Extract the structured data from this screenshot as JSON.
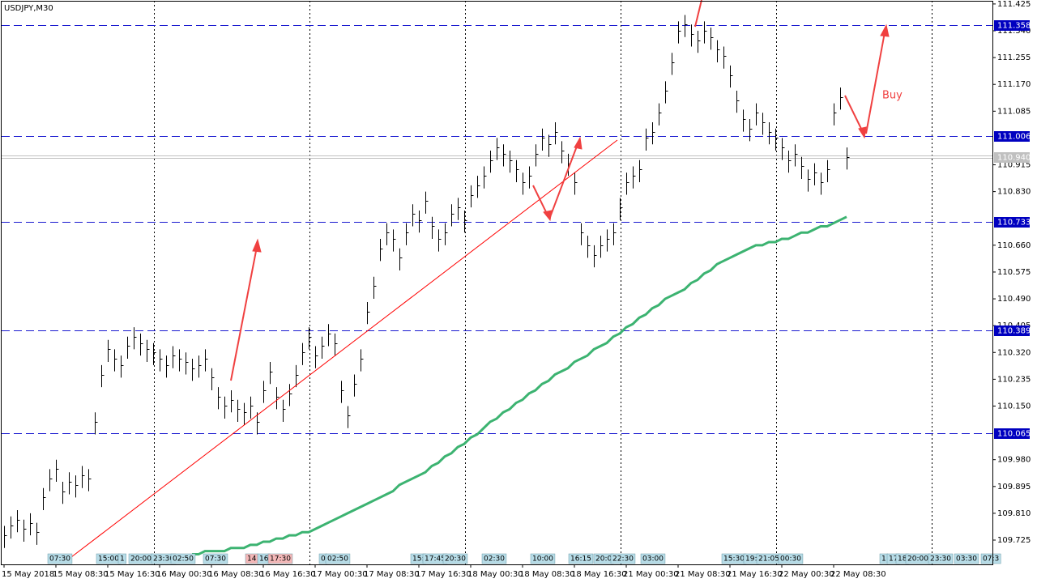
{
  "chart_data": {
    "type": "ohlc",
    "title": "USDJPY,M30",
    "annotation": "Buy",
    "color": "#000000",
    "ylim": [
      109.648,
      111.435
    ],
    "yticks": [
      111.425,
      {
        "value": 111.34,
        "label": "111.340"
      },
      111.255,
      {
        "value": 111.17,
        "label": "111.170"
      },
      111.085,
      110.915,
      {
        "value": 110.83,
        "label": "110.830"
      },
      {
        "value": 110.66,
        "label": "110.660"
      },
      110.575,
      {
        "value": 110.49,
        "label": "110.490"
      },
      110.405,
      {
        "value": 110.32,
        "label": "110.320"
      },
      110.235,
      {
        "value": 110.15,
        "label": "110.150"
      },
      {
        "value": 109.98,
        "label": "109.980"
      },
      109.895,
      {
        "value": 109.81,
        "label": "109.810"
      },
      109.725
    ],
    "levels": [
      111.358,
      111.006,
      110.733,
      110.389,
      110.065
    ],
    "current_price": {
      "value": 110.94,
      "label": "110.940"
    },
    "events": [
      "07:30",
      "15:00",
      "1",
      "20:00",
      "23:30",
      "02:50",
      "07:30",
      "14",
      "16",
      "17:30",
      "0",
      "02:50",
      "15:",
      "17:45",
      "20:30",
      "02:30",
      "10:00",
      "16:15",
      "20:0",
      "22:30",
      "03:00",
      "15:30",
      "19:",
      "21:05",
      "00:30",
      "1",
      "17",
      "18",
      "20:00",
      "23:30",
      "03:30",
      "07:3"
    ],
    "categories": [
      "15 May 2018",
      null,
      null,
      null,
      null,
      null,
      null,
      null,
      "15 May 08:30",
      null,
      null,
      null,
      null,
      null,
      null,
      null,
      "15 May 16:30",
      null,
      null,
      null,
      null,
      null,
      null,
      null,
      "16 May 00:30",
      null,
      null,
      null,
      null,
      null,
      null,
      null,
      "16 May 08:30",
      null,
      null,
      null,
      null,
      null,
      null,
      null,
      "16 May 16:30",
      null,
      null,
      null,
      null,
      null,
      null,
      null,
      "17 May 00:30",
      null,
      null,
      null,
      null,
      null,
      null,
      null,
      "17 May 08:30",
      null,
      null,
      null,
      null,
      null,
      null,
      null,
      "17 May 16:30",
      null,
      null,
      null,
      null,
      null,
      null,
      null,
      "18 May 00:30",
      null,
      null,
      null,
      null,
      null,
      null,
      null,
      "18 May 08:30",
      null,
      null,
      null,
      null,
      null,
      null,
      null,
      "18 May 16:30",
      null,
      null,
      null,
      null,
      null,
      null,
      null,
      "21 May 00:30",
      null,
      null,
      null,
      null,
      null,
      null,
      null,
      "21 May 08:30",
      null,
      null,
      null,
      null,
      null,
      null,
      null,
      "21 May 16:30",
      null,
      null,
      null,
      null,
      null,
      null,
      null,
      "22 May 00:30",
      null,
      null,
      null,
      null,
      null,
      null,
      null,
      "22 May 08:30",
      null,
      null
    ],
    "high": [
      109.77,
      109.8,
      109.82,
      109.79,
      109.81,
      109.78,
      109.89,
      109.95,
      109.98,
      109.91,
      109.94,
      109.93,
      109.96,
      109.95,
      110.13,
      110.28,
      110.36,
      110.33,
      110.31,
      110.37,
      110.4,
      110.38,
      110.36,
      110.35,
      110.33,
      110.31,
      110.34,
      110.33,
      110.32,
      110.3,
      110.31,
      110.33,
      110.27,
      110.21,
      110.18,
      110.2,
      110.17,
      110.16,
      110.18,
      110.13,
      110.23,
      110.29,
      110.21,
      110.17,
      110.22,
      110.28,
      110.35,
      110.4,
      110.34,
      110.37,
      110.41,
      110.38,
      110.23,
      110.15,
      110.25,
      110.33,
      110.48,
      110.56,
      110.68,
      110.73,
      110.71,
      110.65,
      110.73,
      110.79,
      110.77,
      110.83,
      110.75,
      110.71,
      110.73,
      110.79,
      110.81,
      110.77,
      110.85,
      110.88,
      110.91,
      110.96,
      111,
      110.98,
      110.96,
      110.93,
      110.89,
      110.91,
      110.98,
      111.03,
      111.01,
      111.05,
      110.99,
      110.95,
      110.89,
      110.73,
      110.69,
      110.66,
      110.69,
      110.71,
      110.73,
      110.81,
      110.89,
      110.91,
      110.93,
      111.03,
      111.05,
      111.11,
      111.18,
      111.27,
      111.37,
      111.39,
      111.36,
      111.34,
      111.37,
      111.35,
      111.31,
      111.29,
      111.23,
      111.15,
      111.09,
      111.06,
      111.11,
      111.08,
      111.05,
      111.03,
      111,
      110.96,
      110.98,
      110.94,
      110.9,
      110.92,
      110.89,
      110.93,
      111.11,
      111.16,
      110.97
    ],
    "low": [
      109.7,
      109.73,
      109.75,
      109.72,
      109.74,
      109.71,
      109.82,
      109.88,
      109.91,
      109.84,
      109.87,
      109.86,
      109.89,
      109.88,
      110.06,
      110.21,
      110.29,
      110.26,
      110.24,
      110.3,
      110.33,
      110.31,
      110.29,
      110.28,
      110.26,
      110.24,
      110.27,
      110.26,
      110.25,
      110.23,
      110.24,
      110.26,
      110.2,
      110.14,
      110.11,
      110.13,
      110.1,
      110.09,
      110.11,
      110.06,
      110.16,
      110.22,
      110.14,
      110.1,
      110.15,
      110.21,
      110.28,
      110.33,
      110.27,
      110.3,
      110.34,
      110.31,
      110.16,
      110.08,
      110.18,
      110.26,
      110.41,
      110.49,
      110.61,
      110.66,
      110.64,
      110.58,
      110.66,
      110.72,
      110.7,
      110.76,
      110.68,
      110.64,
      110.66,
      110.72,
      110.74,
      110.7,
      110.78,
      110.81,
      110.84,
      110.89,
      110.93,
      110.91,
      110.89,
      110.86,
      110.82,
      110.84,
      110.91,
      110.96,
      110.94,
      110.98,
      110.92,
      110.88,
      110.82,
      110.66,
      110.62,
      110.59,
      110.62,
      110.64,
      110.66,
      110.74,
      110.82,
      110.84,
      110.86,
      110.96,
      110.98,
      111.04,
      111.11,
      111.2,
      111.3,
      111.32,
      111.29,
      111.27,
      111.3,
      111.28,
      111.24,
      111.22,
      111.16,
      111.08,
      111.02,
      110.99,
      111.04,
      111.01,
      110.98,
      110.96,
      110.93,
      110.89,
      110.91,
      110.87,
      110.83,
      110.85,
      110.82,
      110.86,
      111.04,
      111.09,
      110.9
    ],
    "close": [
      109.74,
      109.77,
      109.79,
      109.76,
      109.78,
      109.75,
      109.86,
      109.92,
      109.95,
      109.88,
      109.91,
      109.9,
      109.93,
      109.92,
      110.1,
      110.25,
      110.33,
      110.3,
      110.28,
      110.34,
      110.37,
      110.35,
      110.33,
      110.32,
      110.3,
      110.28,
      110.31,
      110.3,
      110.29,
      110.27,
      110.28,
      110.3,
      110.24,
      110.18,
      110.15,
      110.17,
      110.14,
      110.13,
      110.15,
      110.1,
      110.2,
      110.26,
      110.18,
      110.14,
      110.19,
      110.25,
      110.32,
      110.37,
      110.31,
      110.34,
      110.38,
      110.35,
      110.2,
      110.12,
      110.22,
      110.3,
      110.45,
      110.53,
      110.65,
      110.7,
      110.68,
      110.62,
      110.7,
      110.76,
      110.74,
      110.8,
      110.72,
      110.68,
      110.7,
      110.76,
      110.78,
      110.74,
      110.82,
      110.85,
      110.88,
      110.93,
      110.97,
      110.95,
      110.93,
      110.9,
      110.86,
      110.88,
      110.95,
      111,
      110.98,
      111.02,
      110.96,
      110.92,
      110.86,
      110.7,
      110.66,
      110.63,
      110.66,
      110.68,
      110.7,
      110.78,
      110.86,
      110.88,
      110.9,
      111,
      111.02,
      111.08,
      111.15,
      111.24,
      111.34,
      111.36,
      111.33,
      111.31,
      111.34,
      111.32,
      111.28,
      111.26,
      111.2,
      111.12,
      111.06,
      111.03,
      111.08,
      111.05,
      111.02,
      111,
      110.97,
      110.93,
      110.95,
      110.91,
      110.87,
      110.89,
      110.86,
      110.9,
      111.08,
      111.13,
      110.94
    ],
    "moving_average": {
      "color": "#3cb371",
      "values": [
        null,
        null,
        null,
        null,
        null,
        null,
        null,
        null,
        null,
        null,
        null,
        null,
        null,
        null,
        null,
        null,
        null,
        null,
        null,
        null,
        null,
        null,
        null,
        null,
        null,
        null,
        null,
        null,
        null,
        109.68,
        109.68,
        109.69,
        109.69,
        109.69,
        109.69,
        109.7,
        109.7,
        109.7,
        109.71,
        109.71,
        109.72,
        109.72,
        109.73,
        109.73,
        109.74,
        109.74,
        109.75,
        109.75,
        109.76,
        109.77,
        109.78,
        109.79,
        109.8,
        109.81,
        109.82,
        109.83,
        109.84,
        109.85,
        109.86,
        109.87,
        109.88,
        109.9,
        109.91,
        109.92,
        109.93,
        109.94,
        109.96,
        109.97,
        109.99,
        110,
        110.02,
        110.03,
        110.05,
        110.06,
        110.08,
        110.1,
        110.11,
        110.13,
        110.14,
        110.16,
        110.17,
        110.19,
        110.2,
        110.22,
        110.23,
        110.25,
        110.26,
        110.27,
        110.29,
        110.3,
        110.31,
        110.33,
        110.34,
        110.35,
        110.37,
        110.38,
        110.4,
        110.41,
        110.43,
        110.44,
        110.46,
        110.47,
        110.49,
        110.5,
        110.51,
        110.52,
        110.54,
        110.55,
        110.57,
        110.58,
        110.6,
        110.61,
        110.62,
        110.63,
        110.64,
        110.65,
        110.66,
        110.66,
        110.67,
        110.67,
        110.68,
        110.68,
        110.69,
        110.7,
        110.7,
        110.71,
        110.72,
        110.72,
        110.73,
        110.74,
        110.75
      ]
    }
  }
}
